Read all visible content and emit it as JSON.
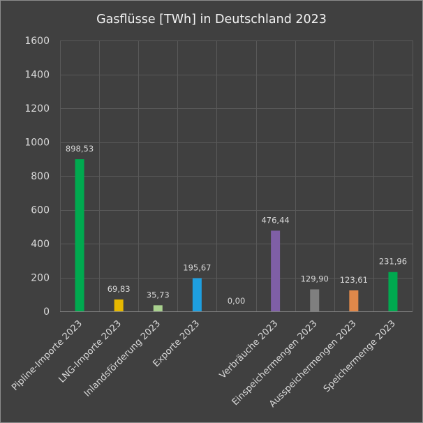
{
  "chart_data": {
    "type": "bar",
    "title": "Gasflüsse [TWh] in Deutschland 2023",
    "xlabel": "",
    "ylabel": "",
    "ylim": [
      0,
      1600
    ],
    "yticks": [
      0,
      200,
      400,
      600,
      800,
      1000,
      1200,
      1400,
      1600
    ],
    "grid": true,
    "legend": "none",
    "categories": [
      "Pipline-Importe 2023",
      "LNG-Importe 2023",
      "Inlandsförderung 2023",
      "Exporte 2023",
      "",
      "Verbräuche 2023",
      "Einspeichermengen 2023",
      "Ausspeichermengen 2023",
      "Speichermenge 2023"
    ],
    "values": [
      898.53,
      69.83,
      35.73,
      195.67,
      0.0,
      476.44,
      129.9,
      123.61,
      231.96
    ],
    "value_labels": [
      "898,53",
      "69,83",
      "35,73",
      "195,67",
      "0,00",
      "476,44",
      "129,90",
      "123,61",
      "231,96"
    ],
    "colors": [
      "#00a94f",
      "#e6b800",
      "#a9d18e",
      "#1e9fe0",
      "#404040",
      "#7f5fa6",
      "#7f7f7f",
      "#e0884a",
      "#00a94f"
    ]
  }
}
